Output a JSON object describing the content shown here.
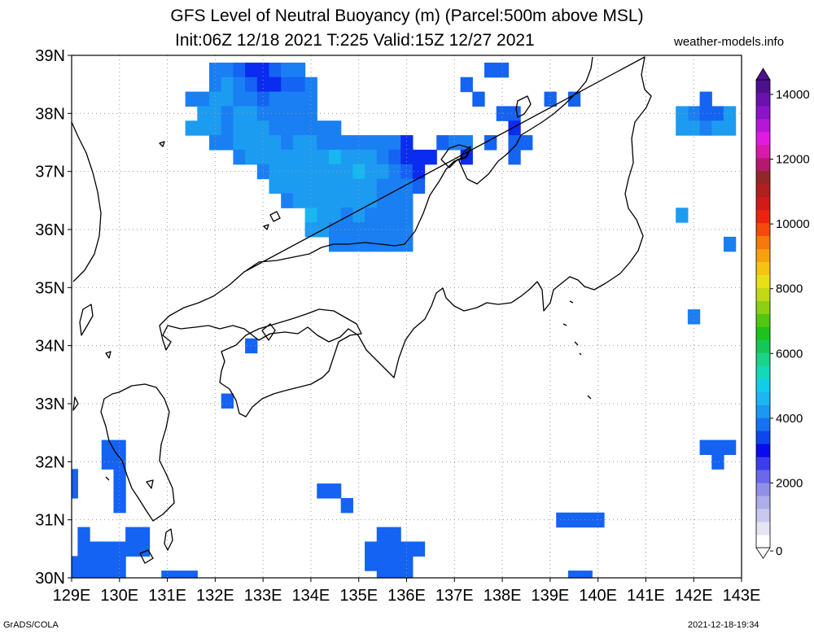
{
  "title": {
    "line1": "GFS Level of Neutral Buoyancy (m) (Parcel:500m above MSL)",
    "line2": "Init:06Z 12/18 2021 T:225 Valid:15Z 12/27 2021",
    "site": "weather-models.info"
  },
  "footer": {
    "left": "GrADS/COLA",
    "right": "2021-12-18-19:34"
  },
  "map": {
    "region": "Central Japan",
    "lat_labels": [
      "30N",
      "31N",
      "32N",
      "33N",
      "34N",
      "35N",
      "36N",
      "37N",
      "38N",
      "39N"
    ],
    "lon_labels": [
      "129E",
      "130E",
      "131E",
      "132E",
      "133E",
      "134E",
      "135E",
      "136E",
      "137E",
      "138E",
      "139E",
      "140E",
      "141E",
      "142E",
      "143E"
    ],
    "gridlines": "dotted",
    "land_color": "#ffffff",
    "coast_color": "#000000"
  },
  "colorbar": {
    "labels": [
      "0",
      "2000",
      "4000",
      "6000",
      "8000",
      "10000",
      "12000",
      "14000"
    ],
    "colors": [
      "#ffffff",
      "#e4e4f6",
      "#c9c9ef",
      "#adadea",
      "#9090e6",
      "#6a6ae8",
      "#3d3df0",
      "#0a0aee",
      "#0d46ee",
      "#1573ef",
      "#1c98f0",
      "#1cb6f0",
      "#10cde8",
      "#13d9b8",
      "#1ad28a",
      "#14c858",
      "#1dc21d",
      "#52c611",
      "#8dcf12",
      "#c2d814",
      "#e8e016",
      "#f5c411",
      "#f7a10d",
      "#f7780c",
      "#f54a0c",
      "#ee2210",
      "#d21a1a",
      "#b02020",
      "#912828",
      "#b31a6e",
      "#d81aa8",
      "#e21ae0",
      "#b417d6",
      "#8a14c8",
      "#6a12ae",
      "#4e108c"
    ]
  },
  "shading": {
    "colors": {
      "deep": "#0a2bf0",
      "mid": "#1463f2",
      "blue": "#1a7ff3",
      "light": "#1c9cf1",
      "cyan": "#19b7f0"
    },
    "cells": [
      [
        132,
        38.75,
        "blue"
      ],
      [
        132.25,
        38.75,
        "blue"
      ],
      [
        132.5,
        38.75,
        "mid"
      ],
      [
        132.75,
        38.75,
        "deep"
      ],
      [
        133,
        38.75,
        "deep"
      ],
      [
        133.25,
        38.75,
        "mid"
      ],
      [
        133.5,
        38.75,
        "blue"
      ],
      [
        133.75,
        38.75,
        "blue"
      ],
      [
        132,
        38.5,
        "blue"
      ],
      [
        132.25,
        38.5,
        "light"
      ],
      [
        132.5,
        38.5,
        "blue"
      ],
      [
        132.75,
        38.5,
        "mid"
      ],
      [
        133,
        38.5,
        "deep"
      ],
      [
        133.25,
        38.5,
        "deep"
      ],
      [
        133.5,
        38.5,
        "mid"
      ],
      [
        133.75,
        38.5,
        "mid"
      ],
      [
        134,
        38.5,
        "blue"
      ],
      [
        131.5,
        38.25,
        "blue"
      ],
      [
        131.75,
        38.25,
        "blue"
      ],
      [
        132,
        38.25,
        "light"
      ],
      [
        132.25,
        38.25,
        "light"
      ],
      [
        132.5,
        38.25,
        "blue"
      ],
      [
        132.75,
        38.25,
        "blue"
      ],
      [
        133,
        38.25,
        "mid"
      ],
      [
        133.25,
        38.25,
        "blue"
      ],
      [
        133.5,
        38.25,
        "blue"
      ],
      [
        133.75,
        38.25,
        "blue"
      ],
      [
        134,
        38.25,
        "blue"
      ],
      [
        131.75,
        38,
        "light"
      ],
      [
        132,
        38,
        "light"
      ],
      [
        132.25,
        38,
        "blue"
      ],
      [
        132.5,
        38,
        "light"
      ],
      [
        132.75,
        38,
        "light"
      ],
      [
        133,
        38,
        "blue"
      ],
      [
        133.25,
        38,
        "blue"
      ],
      [
        133.5,
        38,
        "blue"
      ],
      [
        133.75,
        38,
        "blue"
      ],
      [
        134,
        38,
        "blue"
      ],
      [
        131.5,
        37.75,
        "light"
      ],
      [
        131.75,
        37.75,
        "light"
      ],
      [
        132,
        37.75,
        "light"
      ],
      [
        132.25,
        37.75,
        "blue"
      ],
      [
        132.5,
        37.75,
        "light"
      ],
      [
        132.75,
        37.75,
        "light"
      ],
      [
        133,
        37.75,
        "light"
      ],
      [
        133.25,
        37.75,
        "blue"
      ],
      [
        133.5,
        37.75,
        "blue"
      ],
      [
        133.75,
        37.75,
        "blue"
      ],
      [
        134,
        37.75,
        "blue"
      ],
      [
        134.25,
        37.75,
        "blue"
      ],
      [
        134.5,
        37.75,
        "blue"
      ],
      [
        132,
        37.5,
        "blue"
      ],
      [
        132.25,
        37.5,
        "blue"
      ],
      [
        132.5,
        37.5,
        "light"
      ],
      [
        132.75,
        37.5,
        "light"
      ],
      [
        133,
        37.5,
        "light"
      ],
      [
        133.25,
        37.5,
        "light"
      ],
      [
        133.5,
        37.5,
        "blue"
      ],
      [
        133.75,
        37.5,
        "light"
      ],
      [
        134,
        37.5,
        "light"
      ],
      [
        134.25,
        37.5,
        "blue"
      ],
      [
        134.5,
        37.5,
        "blue"
      ],
      [
        134.75,
        37.5,
        "blue"
      ],
      [
        135,
        37.5,
        "blue"
      ],
      [
        135.25,
        37.5,
        "blue"
      ],
      [
        135.5,
        37.5,
        "blue"
      ],
      [
        135.75,
        37.5,
        "blue"
      ],
      [
        136,
        37.5,
        "deep"
      ],
      [
        132.5,
        37.25,
        "blue"
      ],
      [
        132.75,
        37.25,
        "light"
      ],
      [
        133,
        37.25,
        "light"
      ],
      [
        133.25,
        37.25,
        "light"
      ],
      [
        133.5,
        37.25,
        "light"
      ],
      [
        133.75,
        37.25,
        "light"
      ],
      [
        134,
        37.25,
        "light"
      ],
      [
        134.25,
        37.25,
        "light"
      ],
      [
        134.5,
        37.25,
        "cyan"
      ],
      [
        134.75,
        37.25,
        "light"
      ],
      [
        135,
        37.25,
        "light"
      ],
      [
        135.25,
        37.25,
        "light"
      ],
      [
        135.5,
        37.25,
        "blue"
      ],
      [
        135.75,
        37.25,
        "mid"
      ],
      [
        136,
        37.25,
        "deep"
      ],
      [
        136.25,
        37.25,
        "deep"
      ],
      [
        136.5,
        37.25,
        "deep"
      ],
      [
        133,
        37,
        "blue"
      ],
      [
        133.25,
        37,
        "light"
      ],
      [
        133.5,
        37,
        "light"
      ],
      [
        133.75,
        37,
        "light"
      ],
      [
        134,
        37,
        "light"
      ],
      [
        134.25,
        37,
        "light"
      ],
      [
        134.5,
        37,
        "light"
      ],
      [
        134.75,
        37,
        "light"
      ],
      [
        135,
        37,
        "cyan"
      ],
      [
        135.25,
        37,
        "light"
      ],
      [
        135.5,
        37,
        "light"
      ],
      [
        135.75,
        37,
        "blue"
      ],
      [
        136,
        37,
        "mid"
      ],
      [
        136.25,
        37,
        "deep"
      ],
      [
        133.25,
        36.75,
        "light"
      ],
      [
        133.5,
        36.75,
        "light"
      ],
      [
        133.75,
        36.75,
        "light"
      ],
      [
        134,
        36.75,
        "light"
      ],
      [
        134.25,
        36.75,
        "light"
      ],
      [
        134.5,
        36.75,
        "light"
      ],
      [
        134.75,
        36.75,
        "light"
      ],
      [
        135,
        36.75,
        "light"
      ],
      [
        135.25,
        36.75,
        "light"
      ],
      [
        135.5,
        36.75,
        "blue"
      ],
      [
        135.75,
        36.75,
        "blue"
      ],
      [
        136,
        36.75,
        "blue"
      ],
      [
        136.25,
        36.75,
        "mid"
      ],
      [
        133.5,
        36.5,
        "blue"
      ],
      [
        133.75,
        36.5,
        "light"
      ],
      [
        134,
        36.5,
        "light"
      ],
      [
        134.25,
        36.5,
        "light"
      ],
      [
        134.5,
        36.5,
        "light"
      ],
      [
        134.75,
        36.5,
        "light"
      ],
      [
        135,
        36.5,
        "light"
      ],
      [
        135.25,
        36.5,
        "light"
      ],
      [
        135.5,
        36.5,
        "blue"
      ],
      [
        135.75,
        36.5,
        "blue"
      ],
      [
        136,
        36.5,
        "blue"
      ],
      [
        134,
        36.25,
        "cyan"
      ],
      [
        134.25,
        36.25,
        "light"
      ],
      [
        134.5,
        36.25,
        "light"
      ],
      [
        134.75,
        36.25,
        "blue"
      ],
      [
        135,
        36.25,
        "light"
      ],
      [
        135.25,
        36.25,
        "blue"
      ],
      [
        135.5,
        36.25,
        "blue"
      ],
      [
        135.75,
        36.25,
        "blue"
      ],
      [
        136,
        36.25,
        "blue"
      ],
      [
        134,
        36,
        "light"
      ],
      [
        134.25,
        36,
        "light"
      ],
      [
        134.5,
        36,
        "blue"
      ],
      [
        134.75,
        36,
        "blue"
      ],
      [
        135,
        36,
        "blue"
      ],
      [
        135.25,
        36,
        "blue"
      ],
      [
        135.5,
        36,
        "blue"
      ],
      [
        135.75,
        36,
        "blue"
      ],
      [
        136,
        36,
        "blue"
      ],
      [
        134.5,
        35.75,
        "blue"
      ],
      [
        134.75,
        35.75,
        "blue"
      ],
      [
        135,
        35.75,
        "blue"
      ],
      [
        135.25,
        35.75,
        "blue"
      ],
      [
        135.5,
        35.75,
        "blue"
      ],
      [
        135.75,
        35.75,
        "blue"
      ],
      [
        136,
        35.75,
        "blue"
      ],
      [
        137.75,
        37.5,
        "mid"
      ],
      [
        138.25,
        37.25,
        "mid"
      ],
      [
        138.5,
        37.5,
        "mid"
      ],
      [
        136.75,
        37.5,
        "mid"
      ],
      [
        137,
        37.5,
        "blue"
      ],
      [
        137.25,
        37.5,
        "blue"
      ],
      [
        137.25,
        37.25,
        "deep"
      ],
      [
        137.75,
        38.75,
        "mid"
      ],
      [
        138,
        38.75,
        "mid"
      ],
      [
        137.25,
        38.5,
        "mid"
      ],
      [
        139.5,
        38.25,
        "mid"
      ],
      [
        137.5,
        38.25,
        "mid"
      ],
      [
        139,
        38.25,
        "mid"
      ],
      [
        138,
        38,
        "mid"
      ],
      [
        138.25,
        38,
        "mid"
      ],
      [
        138.25,
        37.75,
        "deep"
      ],
      [
        138.25,
        37.5,
        "mid"
      ],
      [
        142.25,
        38.25,
        "mid"
      ],
      [
        142,
        38,
        "blue"
      ],
      [
        142.25,
        38,
        "mid"
      ],
      [
        142.5,
        38,
        "mid"
      ],
      [
        141.75,
        38,
        "light"
      ],
      [
        142.75,
        38,
        "light"
      ],
      [
        141.75,
        37.75,
        "light"
      ],
      [
        142,
        37.75,
        "light"
      ],
      [
        142.25,
        37.75,
        "blue"
      ],
      [
        142.5,
        37.75,
        "light"
      ],
      [
        142.75,
        37.75,
        "light"
      ],
      [
        141.75,
        36.25,
        "light"
      ],
      [
        142.75,
        35.75,
        "blue"
      ],
      [
        142,
        34.5,
        "blue"
      ],
      [
        132.75,
        34,
        "mid"
      ],
      [
        132.25,
        33.05,
        "mid"
      ],
      [
        142.5,
        32.25,
        "mid"
      ],
      [
        142.75,
        32.25,
        "mid"
      ],
      [
        142.25,
        32.25,
        "mid"
      ],
      [
        142.5,
        32,
        "mid"
      ],
      [
        134.25,
        31.5,
        "mid"
      ],
      [
        134.5,
        31.5,
        "mid"
      ],
      [
        134.75,
        31.25,
        "mid"
      ],
      [
        139.25,
        31,
        "mid"
      ],
      [
        139.5,
        31,
        "mid"
      ],
      [
        139.75,
        31,
        "mid"
      ],
      [
        140,
        31,
        "mid"
      ],
      [
        129,
        31.75,
        "mid"
      ],
      [
        129,
        31.5,
        "mid"
      ],
      [
        129.75,
        32.25,
        "mid"
      ],
      [
        130,
        32.25,
        "mid"
      ],
      [
        129.75,
        32,
        "mid"
      ],
      [
        130,
        32,
        "mid"
      ],
      [
        130,
        31.75,
        "mid"
      ],
      [
        130,
        31.5,
        "mid"
      ],
      [
        130,
        31.25,
        "mid"
      ],
      [
        130.25,
        30.75,
        "mid"
      ],
      [
        130.5,
        30.75,
        "mid"
      ],
      [
        129.25,
        30.75,
        "mid"
      ],
      [
        130.25,
        30.5,
        "mid"
      ],
      [
        130.5,
        30.5,
        "mid"
      ],
      [
        129.25,
        30.5,
        "mid"
      ],
      [
        129.5,
        30.5,
        "mid"
      ],
      [
        129.75,
        30.5,
        "mid"
      ],
      [
        130,
        30.5,
        "mid"
      ],
      [
        129,
        30.25,
        "mid"
      ],
      [
        129.25,
        30.25,
        "mid"
      ],
      [
        129.5,
        30.25,
        "mid"
      ],
      [
        129.75,
        30.25,
        "mid"
      ],
      [
        130,
        30.25,
        "mid"
      ],
      [
        129,
        30,
        "mid"
      ],
      [
        129.25,
        30,
        "mid"
      ],
      [
        129.5,
        30,
        "mid"
      ],
      [
        129.75,
        30,
        "mid"
      ],
      [
        130,
        30,
        "mid"
      ],
      [
        131,
        30,
        "mid"
      ],
      [
        131.25,
        30,
        "mid"
      ],
      [
        131.5,
        30,
        "mid"
      ],
      [
        135.5,
        30.75,
        "mid"
      ],
      [
        135.75,
        30.75,
        "mid"
      ],
      [
        135.25,
        30.5,
        "mid"
      ],
      [
        135.5,
        30.5,
        "mid"
      ],
      [
        135.75,
        30.5,
        "mid"
      ],
      [
        136,
        30.5,
        "mid"
      ],
      [
        136.25,
        30.5,
        "mid"
      ],
      [
        135.25,
        30.25,
        "mid"
      ],
      [
        135.5,
        30.25,
        "mid"
      ],
      [
        135.75,
        30.25,
        "mid"
      ],
      [
        136,
        30.25,
        "mid"
      ],
      [
        135.5,
        30,
        "mid"
      ],
      [
        135.75,
        30,
        "mid"
      ],
      [
        136,
        30,
        "mid"
      ],
      [
        139.5,
        30,
        "mid"
      ],
      [
        139.75,
        30,
        "mid"
      ]
    ]
  }
}
